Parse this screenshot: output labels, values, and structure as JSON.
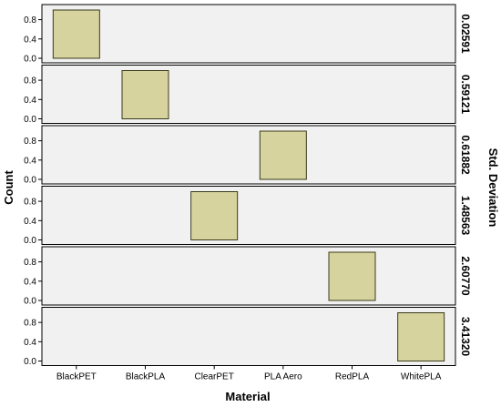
{
  "chart_data": {
    "type": "bar",
    "layout": "faceted-panels",
    "title": "",
    "xlabel": "Material",
    "ylabel": "Count",
    "facet_label": "Std. Deviation",
    "categories": [
      "BlackPET",
      "BlackPLA",
      "ClearPET",
      "PLA Aero",
      "RedPLA",
      "WhitePLA"
    ],
    "ylim": [
      0,
      1.0
    ],
    "yticks": [
      "0.0",
      "0.4",
      "0.8"
    ],
    "ytick_values": [
      0.0,
      0.4,
      0.8
    ],
    "grid": false,
    "bar_color": "#d6d39e",
    "bar_stroke": "#3a3a1a",
    "panel_background": "#f1f1f1",
    "panels": [
      {
        "facet": "0.02591",
        "category": "BlackPET",
        "value": 1.0
      },
      {
        "facet": "0.59121",
        "category": "BlackPLA",
        "value": 1.0
      },
      {
        "facet": "0.61882",
        "category": "PLA Aero",
        "value": 1.0
      },
      {
        "facet": "1.48563",
        "category": "ClearPET",
        "value": 1.0
      },
      {
        "facet": "2.60770",
        "category": "RedPLA",
        "value": 1.0
      },
      {
        "facet": "3.41320",
        "category": "WhitePLA",
        "value": 1.0
      }
    ]
  }
}
